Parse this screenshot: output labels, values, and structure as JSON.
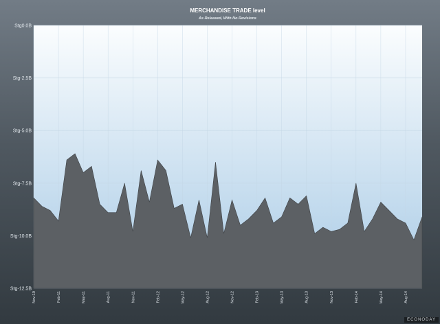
{
  "chart_data": {
    "type": "area",
    "title": "MERCHANDISE TRADE level",
    "subtitle": "As Released, With No Revisions",
    "y_ticks": [
      "Stg0.0B",
      "Stg-2.5B",
      "Stg-5.0B",
      "Stg-7.5B",
      "Stg-10.0B",
      "Stg-12.5B"
    ],
    "ylim": [
      -12.5,
      0
    ],
    "x_tick_labels": [
      "Nov-10",
      "Feb-11",
      "May-11",
      "Aug-11",
      "Nov-11",
      "Feb-12",
      "May-12",
      "Aug-12",
      "Nov-12",
      "Feb-13",
      "May-13",
      "Aug-13",
      "Nov-13",
      "Feb-14",
      "May-14",
      "Aug-14"
    ],
    "x_start": "2010-11",
    "grid": true,
    "series": [
      {
        "name": "",
        "values": [
          -8.2,
          -8.6,
          -8.8,
          -9.3,
          -6.4,
          -6.1,
          -7.0,
          -6.7,
          -8.5,
          -8.9,
          -8.9,
          -7.5,
          -9.8,
          -6.9,
          -8.4,
          -6.4,
          -6.9,
          -8.7,
          -8.5,
          -10.1,
          -8.3,
          -10.1,
          -6.5,
          -9.9,
          -8.3,
          -9.5,
          -9.2,
          -8.8,
          -8.2,
          -9.4,
          -9.1,
          -8.2,
          -8.5,
          -8.1,
          -9.9,
          -9.6,
          -9.8,
          -9.7,
          -9.4,
          -7.5,
          -9.8,
          -9.2,
          -8.4,
          -8.8,
          -9.2,
          -9.4,
          -10.2,
          -9.1
        ]
      }
    ],
    "colors": {
      "plot_top": "#fbfdfe",
      "plot_bottom": "#a9cbe6",
      "area_fill": "#5c6064",
      "area_stroke": "#3f4347",
      "grid": "#c3d6e4"
    }
  },
  "watermark": "ECONODAY"
}
